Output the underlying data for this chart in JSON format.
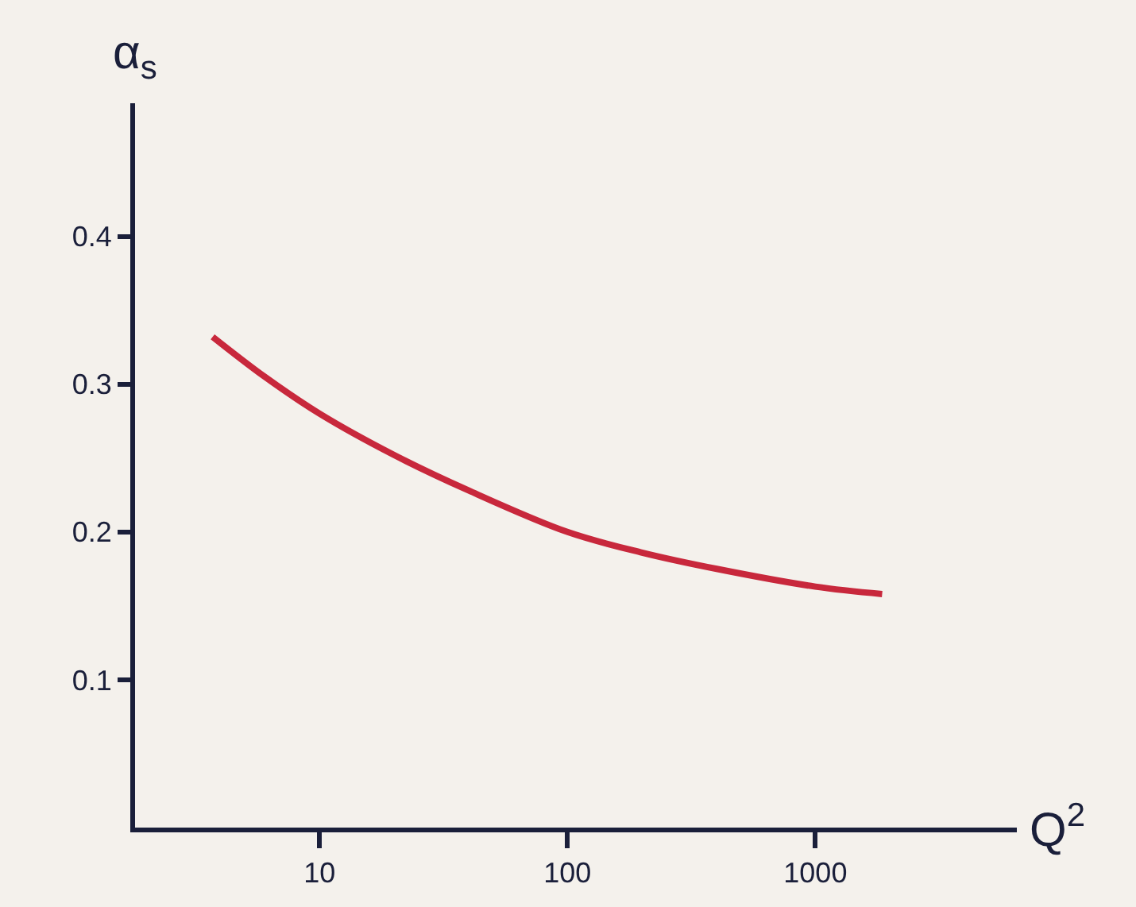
{
  "chart_data": {
    "type": "line",
    "xlabel": "Q$^{2}$",
    "ylabel": "α$_{s}$",
    "x": [
      3.7,
      6,
      10,
      20,
      40,
      100,
      200,
      400,
      1000,
      1860
    ],
    "series": [
      {
        "color": "#c8283c",
        "values": [
          0.332,
          0.305,
          0.28,
          0.252,
          0.228,
          0.2,
          0.186,
          0.175,
          0.163,
          0.158
        ]
      }
    ],
    "log": "x",
    "xlim": [
      1.8,
      6500
    ],
    "xticks": [
      10,
      100,
      1000
    ],
    "ylim": [
      0,
      0.49
    ],
    "yticks": [
      0.1,
      0.2,
      0.3,
      0.4
    ],
    "grid": false,
    "marker": "none",
    "line_style": "solid"
  }
}
